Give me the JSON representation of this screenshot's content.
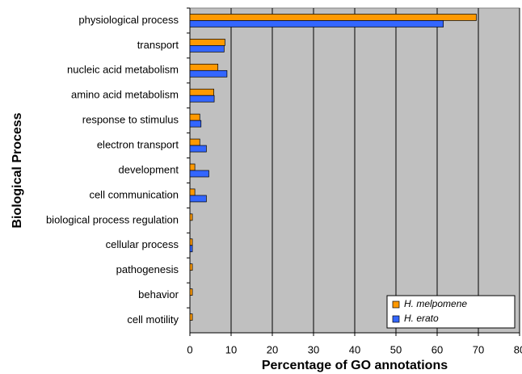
{
  "chart_data": {
    "type": "hbar",
    "xlabel": "Percentage of GO annotations",
    "ylabel": "Biological Process",
    "categories": [
      "physiological process",
      "transport",
      "nucleic acid metabolism",
      "amino acid metabolism",
      "response to stimulus",
      "electron transport",
      "development",
      "cell communication",
      "biological process regulation",
      "cellular process",
      "pathogenesis",
      "behavior",
      "cell motility"
    ],
    "series": [
      {
        "name": "H. melpomene",
        "color": "#ff9900",
        "values": [
          69.5,
          8.5,
          6.8,
          5.8,
          2.4,
          2.4,
          1.2,
          1.2,
          0.6,
          0.6,
          0.6,
          0.6,
          0.6
        ]
      },
      {
        "name": "H. erato",
        "color": "#3366ff",
        "values": [
          61.5,
          8.3,
          9.0,
          5.9,
          2.7,
          4.0,
          4.6,
          4.0,
          0,
          0.6,
          0,
          0,
          0
        ]
      }
    ],
    "xlim": [
      0,
      80
    ],
    "xticks": [
      0,
      10,
      20,
      30,
      40,
      50,
      60,
      70,
      80
    ],
    "grid": true,
    "legend": "lower right",
    "background": "#c0c0c0"
  }
}
